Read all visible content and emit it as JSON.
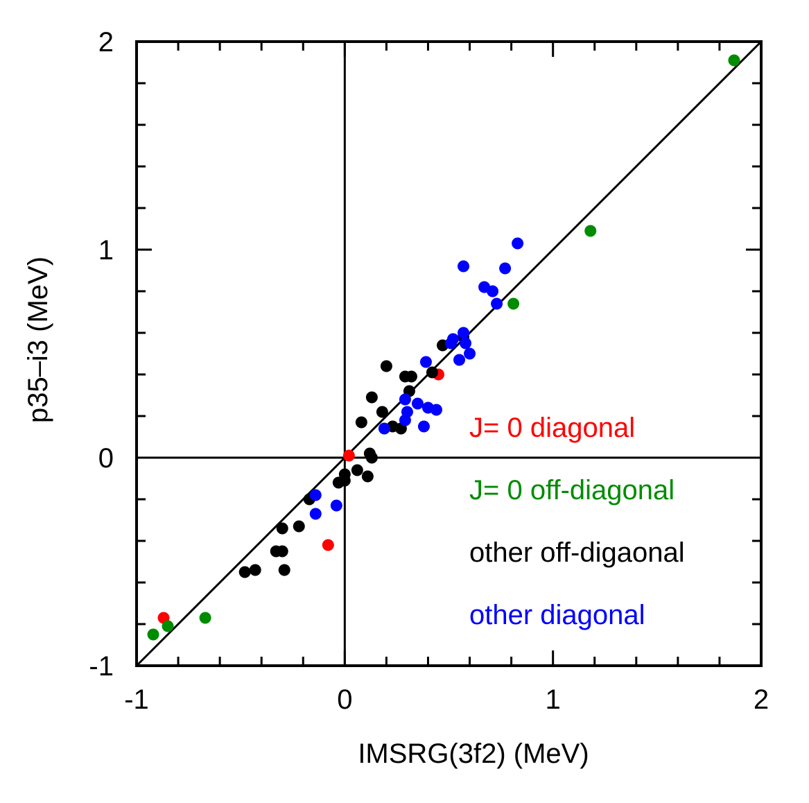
{
  "chart_data": {
    "type": "scatter",
    "title": "",
    "xlabel": "IMSRG(3f2) (MeV)",
    "ylabel": "p35–i3 (MeV)",
    "xlim": [
      -1,
      2
    ],
    "ylim": [
      -1,
      2
    ],
    "major_ticks": [
      -1,
      0,
      1,
      2
    ],
    "major_tick_labels": [
      "-1",
      "0",
      "1",
      "2"
    ],
    "minor_tick_step": 0.2,
    "reference_lines": [
      "x=0",
      "y=0",
      "y=x"
    ],
    "grid": false,
    "legend_position": "bottom-right",
    "series": [
      {
        "name": "J= 0 diagonal",
        "color": "#ff0000",
        "points": [
          [
            0.02,
            0.01
          ],
          [
            0.45,
            0.4
          ],
          [
            -0.08,
            -0.42
          ],
          [
            -0.87,
            -0.77
          ]
        ]
      },
      {
        "name": "J= 0 off-diagonal",
        "color": "#008c00",
        "points": [
          [
            1.87,
            1.91
          ],
          [
            1.18,
            1.09
          ],
          [
            0.81,
            0.74
          ],
          [
            -0.67,
            -0.77
          ],
          [
            -0.92,
            -0.85
          ],
          [
            -0.85,
            -0.81
          ]
        ]
      },
      {
        "name": "other off-digaonal",
        "color": "#000000",
        "points": [
          [
            0.2,
            0.44
          ],
          [
            0.29,
            0.39
          ],
          [
            0.32,
            0.39
          ],
          [
            0.31,
            0.32
          ],
          [
            0.47,
            0.54
          ],
          [
            0.57,
            0.58
          ],
          [
            0.42,
            0.41
          ],
          [
            0.13,
            0.29
          ],
          [
            0.18,
            0.22
          ],
          [
            0.08,
            0.17
          ],
          [
            0.23,
            0.15
          ],
          [
            0.27,
            0.14
          ],
          [
            0.12,
            0.02
          ],
          [
            0.13,
            0.0
          ],
          [
            0.06,
            -0.06
          ],
          [
            0.11,
            -0.09
          ],
          [
            0.0,
            -0.08
          ],
          [
            -0.03,
            -0.12
          ],
          [
            0.0,
            -0.11
          ],
          [
            -0.17,
            -0.2
          ],
          [
            -0.22,
            -0.33
          ],
          [
            -0.3,
            -0.34
          ],
          [
            -0.33,
            -0.45
          ],
          [
            -0.3,
            -0.45
          ],
          [
            -0.43,
            -0.54
          ],
          [
            -0.48,
            -0.55
          ],
          [
            -0.29,
            -0.54
          ]
        ]
      },
      {
        "name": "other diagonal",
        "color": "#0000ff",
        "points": [
          [
            0.83,
            1.03
          ],
          [
            0.57,
            0.92
          ],
          [
            0.77,
            0.91
          ],
          [
            0.67,
            0.82
          ],
          [
            0.71,
            0.8
          ],
          [
            0.73,
            0.74
          ],
          [
            0.57,
            0.6
          ],
          [
            0.52,
            0.57
          ],
          [
            0.51,
            0.55
          ],
          [
            0.58,
            0.55
          ],
          [
            0.6,
            0.5
          ],
          [
            0.55,
            0.47
          ],
          [
            0.39,
            0.46
          ],
          [
            0.29,
            0.28
          ],
          [
            0.35,
            0.26
          ],
          [
            0.3,
            0.22
          ],
          [
            0.4,
            0.24
          ],
          [
            0.44,
            0.23
          ],
          [
            0.29,
            0.18
          ],
          [
            0.38,
            0.15
          ],
          [
            0.19,
            0.14
          ],
          [
            -0.14,
            -0.18
          ],
          [
            -0.14,
            -0.27
          ],
          [
            -0.04,
            -0.23
          ]
        ]
      }
    ]
  }
}
